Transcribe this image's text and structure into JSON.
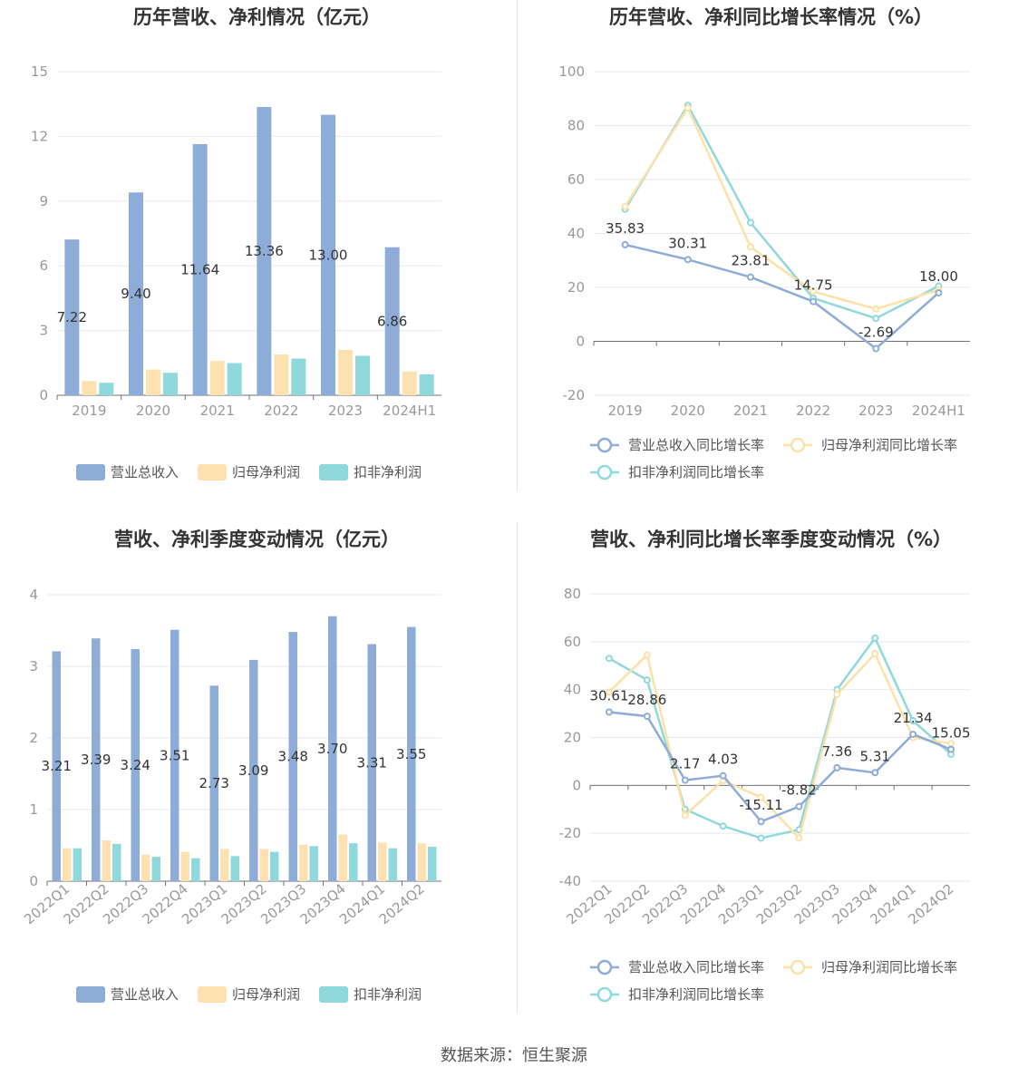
{
  "source_text": "数据来源：恒生聚源",
  "chart_data": [
    {
      "id": "annual_values",
      "type": "bar",
      "title": "历年营收、净利情况（亿元）",
      "categories": [
        "2019",
        "2020",
        "2021",
        "2022",
        "2023",
        "2024H1"
      ],
      "ylim": [
        0,
        15
      ],
      "yticks": [
        "0",
        "3",
        "6",
        "9",
        "12",
        "15"
      ],
      "series": [
        {
          "name": "营业总收入",
          "color": "#8eacd8",
          "values": [
            7.22,
            9.4,
            11.64,
            13.36,
            13.0,
            6.86
          ],
          "labels": [
            "7.22",
            "9.40",
            "11.64",
            "13.36",
            "13.00",
            "6.86"
          ]
        },
        {
          "name": "归母净利润",
          "color": "#fde1b0",
          "values": [
            0.66,
            1.19,
            1.59,
            1.89,
            2.1,
            1.1
          ]
        },
        {
          "name": "扣非净利润",
          "color": "#8fd8dc",
          "values": [
            0.58,
            1.04,
            1.49,
            1.7,
            1.83,
            0.97
          ]
        }
      ]
    },
    {
      "id": "annual_growth",
      "type": "line",
      "title": "历年营收、净利同比增长率情况（%）",
      "categories": [
        "2019",
        "2020",
        "2021",
        "2022",
        "2023",
        "2024H1"
      ],
      "ylim": [
        -20,
        100
      ],
      "yticks": [
        "-20",
        "0",
        "20",
        "40",
        "60",
        "80",
        "100"
      ],
      "series": [
        {
          "name": "营业总收入同比增长率",
          "color": "#8eacd8",
          "values": [
            35.83,
            30.31,
            23.81,
            14.75,
            -2.69,
            18.0
          ],
          "labels": [
            "35.83",
            "30.31",
            "23.81",
            "14.75",
            "-2.69",
            "18.00"
          ]
        },
        {
          "name": "归母净利润同比增长率",
          "color": "#fde1a6",
          "values": [
            50.0,
            86.5,
            35.0,
            18.5,
            12.0,
            19.0
          ]
        },
        {
          "name": "扣非净利润同比增长率",
          "color": "#8fd8dc",
          "values": [
            49.0,
            87.5,
            44.0,
            16.0,
            8.5,
            20.5
          ]
        }
      ]
    },
    {
      "id": "quarterly_values",
      "type": "bar",
      "title": "营收、净利季度变动情况（亿元）",
      "categories": [
        "2022Q1",
        "2022Q2",
        "2022Q3",
        "2022Q4",
        "2023Q1",
        "2023Q2",
        "2023Q3",
        "2023Q4",
        "2024Q1",
        "2024Q2"
      ],
      "ylim": [
        0,
        4
      ],
      "yticks": [
        "0",
        "1",
        "2",
        "3",
        "4"
      ],
      "series": [
        {
          "name": "营业总收入",
          "color": "#8eacd8",
          "values": [
            3.21,
            3.39,
            3.24,
            3.51,
            2.73,
            3.09,
            3.48,
            3.7,
            3.31,
            3.55
          ],
          "labels": [
            "3.21",
            "3.39",
            "3.24",
            "3.51",
            "2.73",
            "3.09",
            "3.48",
            "3.70",
            "3.31",
            "3.55"
          ]
        },
        {
          "name": "归母净利润",
          "color": "#fde1b0",
          "values": [
            0.46,
            0.57,
            0.37,
            0.41,
            0.45,
            0.45,
            0.51,
            0.65,
            0.54,
            0.53
          ]
        },
        {
          "name": "扣非净利润",
          "color": "#8fd8dc",
          "values": [
            0.46,
            0.52,
            0.34,
            0.32,
            0.35,
            0.41,
            0.49,
            0.53,
            0.46,
            0.48
          ]
        }
      ]
    },
    {
      "id": "quarterly_growth",
      "type": "line",
      "title": "营收、净利同比增长率季度变动情况（%）",
      "categories": [
        "2022Q1",
        "2022Q2",
        "2022Q3",
        "2022Q4",
        "2023Q1",
        "2023Q2",
        "2023Q3",
        "2023Q4",
        "2024Q1",
        "2024Q2"
      ],
      "ylim": [
        -40,
        80
      ],
      "yticks": [
        "-40",
        "-20",
        "0",
        "20",
        "40",
        "60",
        "80"
      ],
      "series": [
        {
          "name": "营业总收入同比增长率",
          "color": "#8eacd8",
          "values": [
            30.61,
            28.86,
            2.17,
            4.03,
            -15.11,
            -8.82,
            7.36,
            5.31,
            21.34,
            15.05
          ],
          "labels": [
            "30.61",
            "28.86",
            "2.17",
            "4.03",
            "-15.11",
            "-8.82",
            "7.36",
            "5.31",
            "21.34",
            "15.05"
          ]
        },
        {
          "name": "归母净利润同比增长率",
          "color": "#fde1a6",
          "values": [
            39.0,
            54.5,
            -12.5,
            2.0,
            -5.0,
            -22.0,
            38.0,
            55.0,
            20.0,
            17.5
          ]
        },
        {
          "name": "扣非净利润同比增长率",
          "color": "#8fd8dc",
          "values": [
            53.0,
            44.0,
            -10.0,
            -17.0,
            -22.0,
            -18.5,
            40.0,
            61.5,
            27.0,
            13.0
          ]
        }
      ]
    }
  ]
}
